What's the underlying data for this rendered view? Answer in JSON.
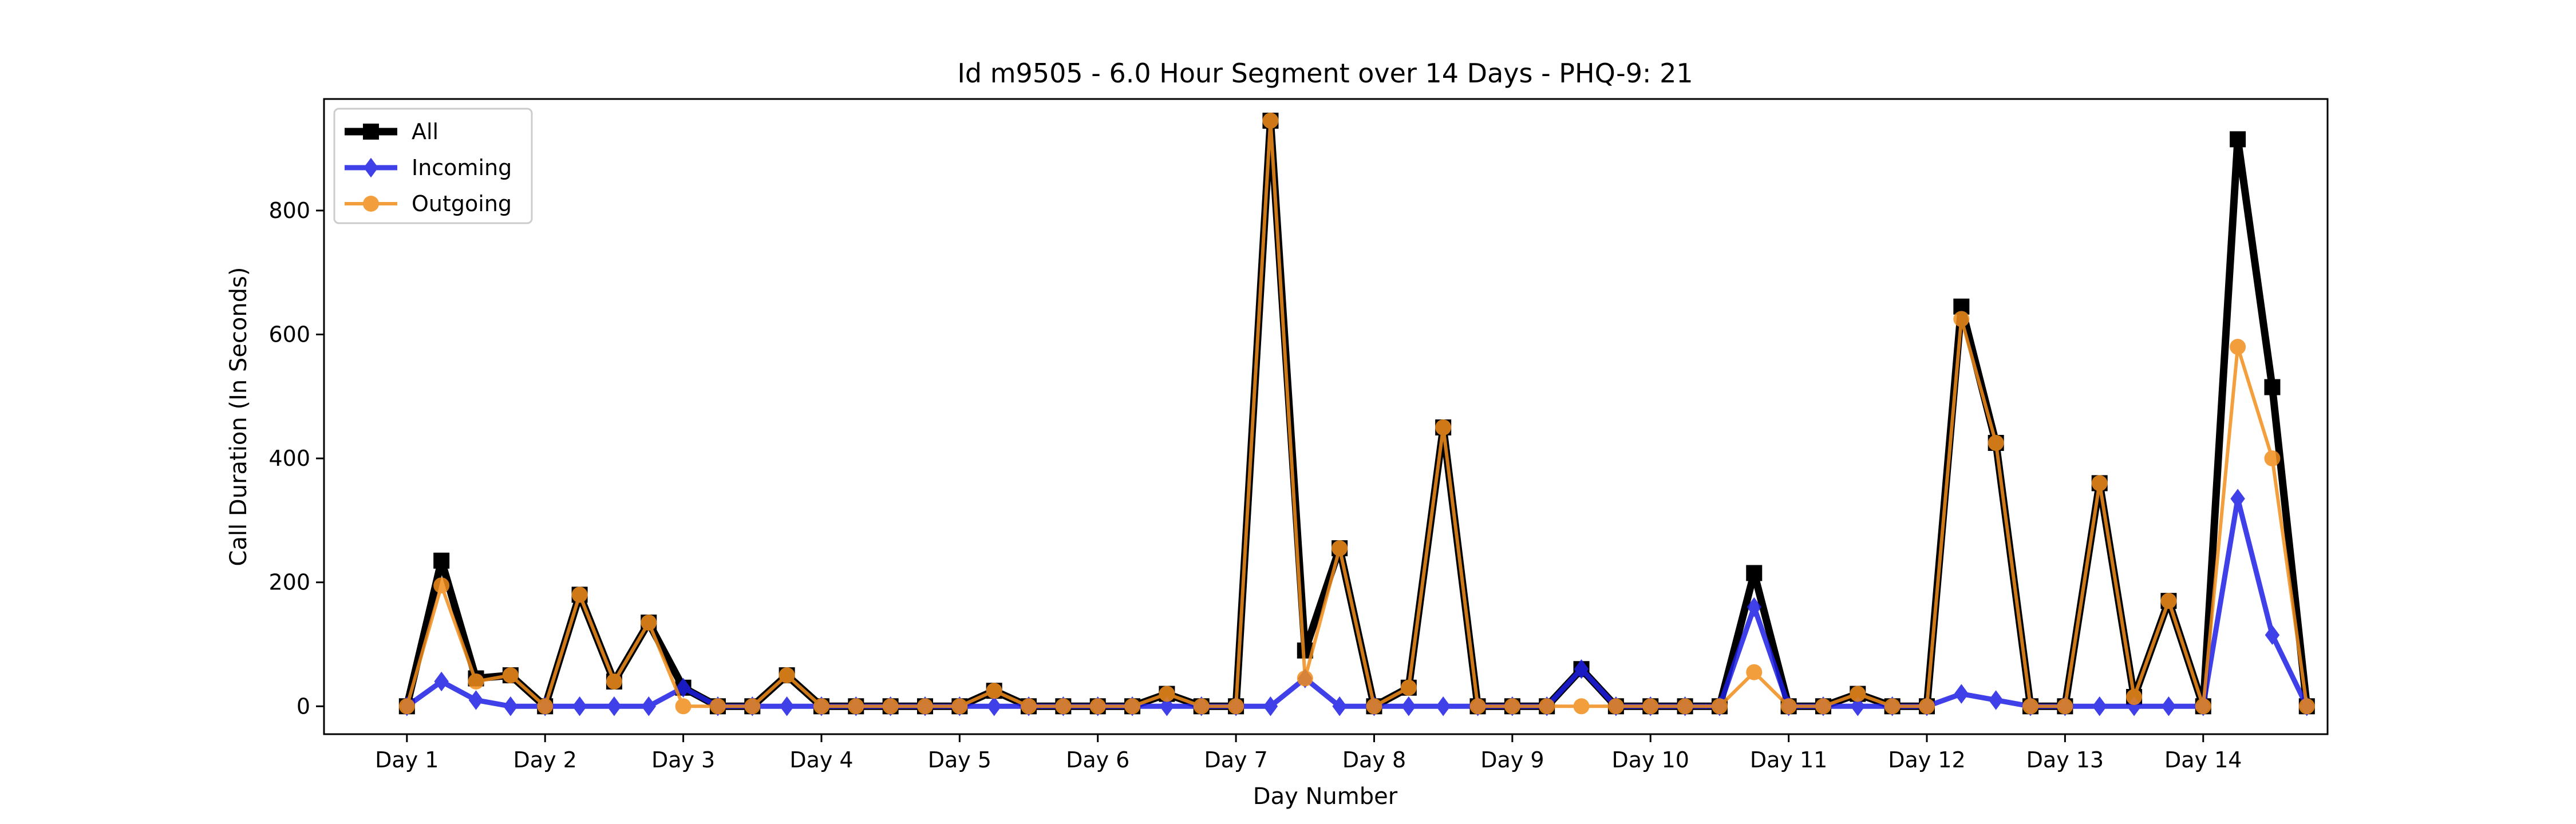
{
  "chart_data": {
    "type": "line",
    "title": "Id m9505 - 6.0 Hour Segment over 14 Days - PHQ-9: 21",
    "xlabel": "Day Number",
    "ylabel": "Call Duration (In Seconds)",
    "xlim": [
      -0.6,
      13.9
    ],
    "ylim": [
      -45,
      980
    ],
    "yticks": [
      0,
      200,
      400,
      600,
      800
    ],
    "xticks": [
      {
        "value": 0,
        "label": "Day 1"
      },
      {
        "value": 1,
        "label": "Day 2"
      },
      {
        "value": 2,
        "label": "Day 3"
      },
      {
        "value": 3,
        "label": "Day 4"
      },
      {
        "value": 4,
        "label": "Day 5"
      },
      {
        "value": 5,
        "label": "Day 6"
      },
      {
        "value": 6,
        "label": "Day 7"
      },
      {
        "value": 7,
        "label": "Day 8"
      },
      {
        "value": 8,
        "label": "Day 9"
      },
      {
        "value": 9,
        "label": "Day 10"
      },
      {
        "value": 10,
        "label": "Day 11"
      },
      {
        "value": 11,
        "label": "Day 12"
      },
      {
        "value": 12,
        "label": "Day 13"
      },
      {
        "value": 13,
        "label": "Day 14"
      }
    ],
    "x": [
      0,
      0.25,
      0.5,
      0.75,
      1,
      1.25,
      1.5,
      1.75,
      2,
      2.25,
      2.5,
      2.75,
      3,
      3.25,
      3.5,
      3.75,
      4,
      4.25,
      4.5,
      4.75,
      5,
      5.25,
      5.5,
      5.75,
      6,
      6.25,
      6.5,
      6.75,
      7,
      7.25,
      7.5,
      7.75,
      8,
      8.25,
      8.5,
      8.75,
      9,
      9.25,
      9.5,
      9.75,
      10,
      10.25,
      10.5,
      10.75,
      11,
      11.25,
      11.5,
      11.75,
      12,
      12.25,
      12.5,
      12.75,
      13,
      13.25,
      13.5,
      13.75
    ],
    "series": [
      {
        "name": "All",
        "color": "#000000",
        "marker": "square",
        "values": [
          0,
          235,
          45,
          50,
          0,
          180,
          40,
          135,
          30,
          0,
          0,
          50,
          0,
          0,
          0,
          0,
          0,
          25,
          0,
          0,
          0,
          0,
          20,
          0,
          0,
          945,
          90,
          255,
          0,
          30,
          450,
          0,
          0,
          0,
          60,
          0,
          0,
          0,
          0,
          215,
          0,
          0,
          20,
          0,
          0,
          645,
          425,
          0,
          0,
          360,
          15,
          170,
          0,
          915,
          515,
          0
        ]
      },
      {
        "name": "Incoming",
        "color": "#1f1fe6",
        "marker": "diamond",
        "values": [
          0,
          40,
          10,
          0,
          0,
          0,
          0,
          0,
          30,
          0,
          0,
          0,
          0,
          0,
          0,
          0,
          0,
          0,
          0,
          0,
          0,
          0,
          0,
          0,
          0,
          0,
          45,
          0,
          0,
          0,
          0,
          0,
          0,
          0,
          60,
          0,
          0,
          0,
          0,
          160,
          0,
          0,
          0,
          0,
          0,
          20,
          10,
          0,
          0,
          0,
          0,
          0,
          0,
          335,
          115,
          0
        ]
      },
      {
        "name": "Outgoing",
        "color": "#f28e1c",
        "marker": "circle",
        "values": [
          0,
          195,
          40,
          50,
          0,
          180,
          40,
          135,
          0,
          0,
          0,
          50,
          0,
          0,
          0,
          0,
          0,
          25,
          0,
          0,
          0,
          0,
          20,
          0,
          0,
          945,
          45,
          255,
          0,
          30,
          450,
          0,
          0,
          0,
          0,
          0,
          0,
          0,
          0,
          55,
          0,
          0,
          20,
          0,
          0,
          625,
          425,
          0,
          0,
          360,
          15,
          170,
          0,
          580,
          400,
          0
        ]
      }
    ],
    "legend_position": "top-left",
    "grid": false
  }
}
